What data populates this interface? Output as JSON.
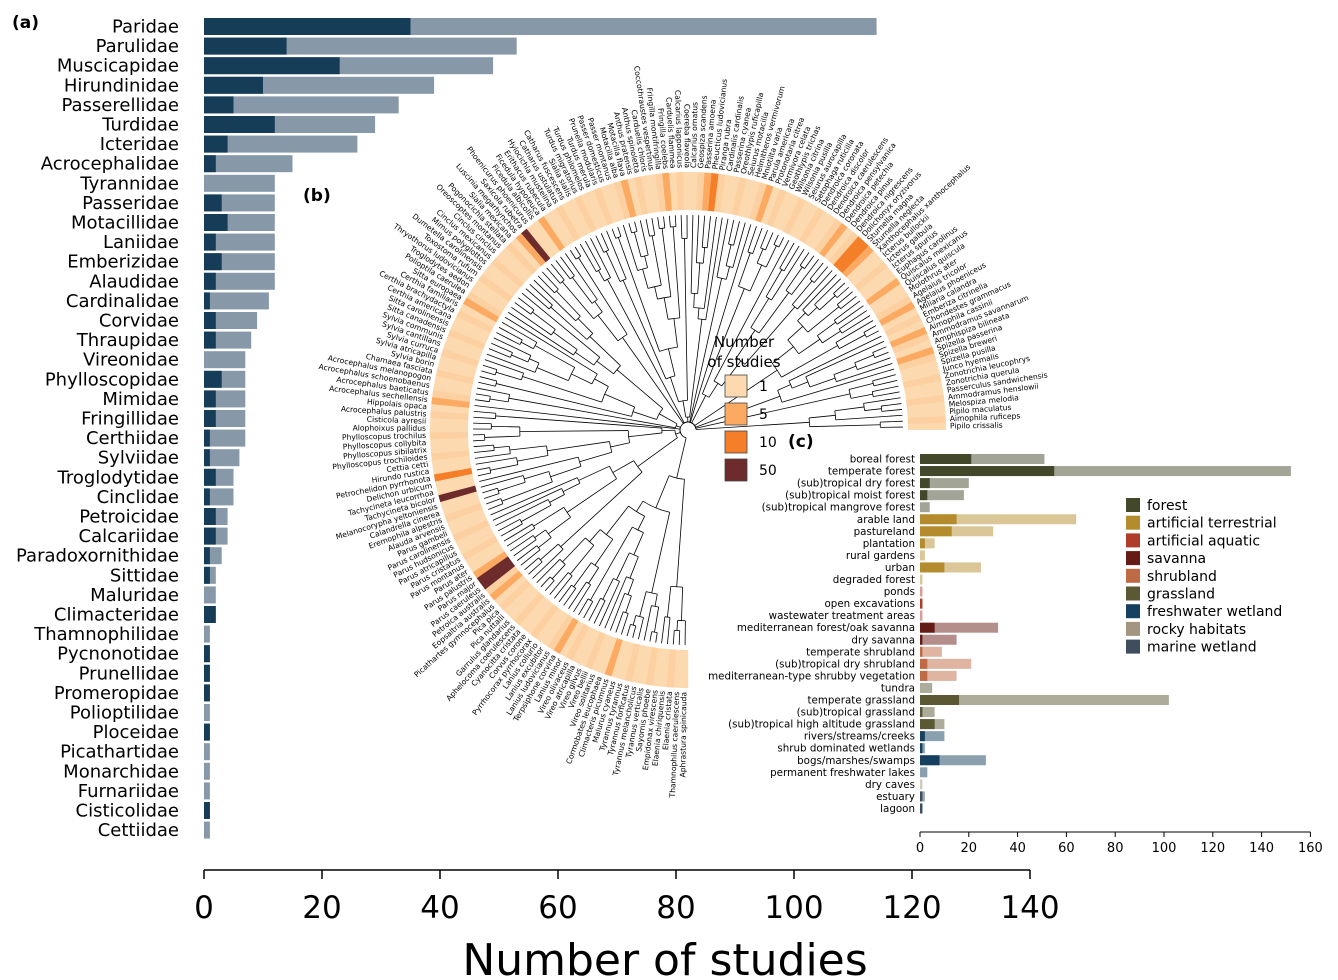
{
  "panels": {
    "a": "(a)",
    "b": "(b)",
    "c": "(c)"
  },
  "colors": {
    "family_dark": "#163d57",
    "family_light": "#8799a8",
    "studies_scale": [
      "#fdd9b0",
      "#fcaa62",
      "#f57f28",
      "#6e2b2b"
    ]
  },
  "chart_data": [
    {
      "type": "bar",
      "orientation": "horizontal",
      "stacked": true,
      "xlabel": "Number of studies",
      "xlim": [
        0,
        140
      ],
      "xticks": [
        0,
        20,
        40,
        60,
        80,
        100,
        120,
        140
      ],
      "categories": [
        "Paridae",
        "Parulidae",
        "Muscicapidae",
        "Hirundinidae",
        "Passerellidae",
        "Turdidae",
        "Icteridae",
        "Acrocephalidae",
        "Tyrannidae",
        "Passeridae",
        "Motacillidae",
        "Laniidae",
        "Emberizidae",
        "Alaudidae",
        "Cardinalidae",
        "Corvidae",
        "Thraupidae",
        "Vireonidae",
        "Phylloscopidae",
        "Mimidae",
        "Fringillidae",
        "Certhiidae",
        "Sylviidae",
        "Troglodytidae",
        "Cinclidae",
        "Petroicidae",
        "Calcariidae",
        "Paradoxornithidae",
        "Sittidae",
        "Maluridae",
        "Climacteridae",
        "Thamnophilidae",
        "Pycnonotidae",
        "Prunellidae",
        "Promeropidae",
        "Polioptilidae",
        "Ploceidae",
        "Picathartidae",
        "Monarchidae",
        "Furnariidae",
        "Cisticolidae",
        "Cettiidae"
      ],
      "series": [
        {
          "values": [
            35,
            14,
            23,
            10,
            5,
            12,
            4,
            2,
            0,
            3,
            4,
            2,
            3,
            2,
            1,
            2,
            2,
            0,
            3,
            2,
            2,
            1,
            1,
            2,
            1,
            2,
            2,
            1,
            1,
            0,
            2,
            0,
            1,
            1,
            1,
            0,
            1,
            0,
            0,
            0,
            1,
            0
          ]
        },
        {
          "values": [
            114,
            53,
            49,
            39,
            33,
            29,
            26,
            15,
            12,
            12,
            12,
            12,
            12,
            12,
            11,
            9,
            8,
            7,
            7,
            7,
            7,
            7,
            6,
            5,
            5,
            4,
            4,
            3,
            2,
            2,
            2,
            1,
            1,
            1,
            1,
            1,
            1,
            1,
            1,
            1,
            1,
            1
          ]
        }
      ]
    },
    {
      "type": "heatmap",
      "layout": "circular",
      "legend_title": "Number of studies",
      "legend": [
        "1",
        "5",
        "10",
        "50"
      ],
      "tips": [
        "Pipilo crissalis",
        "Aimophila ruficeps",
        "Pipilo maculatus",
        "Melospiza melodia",
        "Ammodramus henslowii",
        "Passerculus sandwichensis",
        "Zonotrichia querula",
        "Zonotrichia leucophrys",
        "Junco hyemalis",
        "Spizella pusilla",
        "Spizella breweri",
        "Spizella passerina",
        "Amphispiza bilineata",
        "Ammodramus savannarum",
        "Aimophila cassinii",
        "Chondestes grammacus",
        "Emberiza citrinella",
        "Miliaria calandra",
        "Agelaius phoeniceus",
        "Agelaius tricolor",
        "Molothrus ater",
        "Quiscalus quiscula",
        "Quiscalus mexicanus",
        "Euphagus carolinus",
        "Icterus spurius",
        "Icterus galbula",
        "Icterus bullockii",
        "Xanthocephalus xanthocephalus",
        "Sturnella neglecta",
        "Sturnella magna",
        "Dolichonyx oryzivorus",
        "Dendroica nigrescens",
        "Dendroica pinus",
        "Dendroica petechia",
        "Dendroica pensylvanica",
        "Dendroica caerulescens",
        "Dendroica discolor",
        "Dendroica coronata",
        "Setophaga ruticilla",
        "Seiurus aurocapilla",
        "Wilsonia pusilla",
        "Wilsonia citrina",
        "Geothlypis trichas",
        "Vermivora celata",
        "Protonotaria citrea",
        "Parula americana",
        "Mniotilta varia",
        "Helmitheros vermivorum",
        "Seiurus motacilla",
        "Oreothlypis ruficapilla",
        "Passerina cyanea",
        "Cardinalis cardinalis",
        "Piranga rubra",
        "Pheucticus ludovicianus",
        "Passerina amoena",
        "Geospiza scandens",
        "Calcarius ornatus",
        "Coereba flaveola",
        "Calcarius lapponicus",
        "Carduelis flammea",
        "Fringilla coelebs",
        "Fringilla montifringilla",
        "Coccothraustes vespertinus",
        "Carduelis chloris",
        "Anthus spinoletta",
        "Anthus pratensis",
        "Motacilla flava",
        "Motacilla alba",
        "Passer montanus",
        "Passer domesticus",
        "Prunella modularis",
        "Turdus merula",
        "Turdus philomelos",
        "Turdus migratorius",
        "Sialia sialis",
        "Catharus fuscescens",
        "Catharus ustulatus",
        "Hylocichla mustelina",
        "Erithacus rubecula",
        "Ficedula hypoleuca",
        "Ficedula albicollis",
        "Phoenicurus phoenicurus",
        "Saxicola rubetra",
        "Luscinia megarhynchos",
        "Sialia mexicana",
        "Pogonocichla stellata",
        "Oreoscoptes montanus",
        "Cinclus cinclus",
        "Cinclus mexicanus",
        "Mimus polyglottos",
        "Dumetella carolinensis",
        "Toxostoma rufum",
        "Thryothorus ludovicianus",
        "Troglodytes aedon",
        "Polioptila caerulea",
        "Sitta europaea",
        "Certhia familiaris",
        "Certhia brachydactyla",
        "Certhia americana",
        "Sitta carolinensis",
        "Sitta canadensis",
        "Sylvia communis",
        "Sylvia cantillans",
        "Sylvia curruca",
        "Sylvia atricapilla",
        "Sylvia borin",
        "Chamaea fasciata",
        "Acrocephalus melanopogon",
        "Acrocephalus schoenobaenus",
        "Acrocephalus baeticatus",
        "Acrocephalus sechellensis",
        "Hippolais opaca",
        "Acrocephalus palustris",
        "Cisticola ayresii",
        "Alophoixus pallidus",
        "Phylloscopus trochilus",
        "Phylloscopus collybita",
        "Phylloscopus sibilatrix",
        "Phylloscopus trochiloides",
        "Cettia cetti",
        "Hirundo rustica",
        "Petrochelidon pyrrhonota",
        "Delichon urbicum",
        "Tachycineta leucorrhoa",
        "Tachycineta bicolor",
        "Melanocorypha yeltoniensis",
        "Calandrella cinerea",
        "Eremophila alpestris",
        "Alauda arvensis",
        "Parus gambeli",
        "Parus carolinensis",
        "Parus hudsonicus",
        "Parus atricapillus",
        "Parus cristatus",
        "Parus montanus",
        "Parus ater",
        "Parus palustris",
        "Parus major",
        "Parus caeruleus",
        "Petroica australis",
        "Eopsaltria australis",
        "Picathartes gymnocephalus",
        "Pica pica",
        "Pica nuttalli",
        "Garrulus glandarius",
        "Aphelocoma coerulescens",
        "Cyanocitta cristata",
        "Corvus corone",
        "Pyrrhocorax pyrrhocorax",
        "Lanius collurio",
        "Lanius excubitor",
        "Lanius ludovicianus",
        "Terpsiphone corvina",
        "Lanius minor",
        "Vireo olivaceus",
        "Vireo atricapilla",
        "Vireo gilvus",
        "Vireo bellii",
        "Vireo solitarius",
        "Cormobates leucophaea",
        "Climacteris picumnus",
        "Malurus cyaneus",
        "Tyrannus tyrannus",
        "Tyrannus forficatus",
        "Tyrannus melancholicus",
        "Tyrannus verticalis",
        "Sayornis phoebe",
        "Empidonax virescens",
        "Elaenia chiriquensis",
        "Elaenia cristata",
        "Thamnophilus caerulescens",
        "Aphrastura spinicauda"
      ]
    },
    {
      "type": "bar",
      "orientation": "horizontal",
      "stacked": true,
      "xlim": [
        0,
        160
      ],
      "xticks": [
        0,
        20,
        40,
        60,
        80,
        100,
        120,
        140,
        160
      ],
      "legend": [
        "forest",
        "artificial terrestrial",
        "artificial aquatic",
        "savanna",
        "shrubland",
        "grassland",
        "freshwater wetland",
        "rocky habitats",
        "marine wetland"
      ],
      "legend_colors": [
        "#44482a",
        "#b48c2e",
        "#b03c2a",
        "#661c16",
        "#be6a45",
        "#5b5834",
        "#15405f",
        "#a39580",
        "#3e4e5e"
      ],
      "categories": [
        "boreal forest",
        "temperate forest",
        "(sub)tropical dry forest",
        "(sub)tropical moist forest",
        "(sub)tropical mangrove forest",
        "arable land",
        "pastureland",
        "plantation",
        "rural gardens",
        "urban",
        "degraded forest",
        "ponds",
        "open excavations",
        "wastewater treatment areas",
        "mediterranean forest/oak savanna",
        "dry savanna",
        "temperate shrubland",
        "(sub)tropical dry shrubland",
        "mediterranean-type shrubby vegetation",
        "tundra",
        "temperate grassland",
        "(sub)tropical grassland",
        "(sub)tropical high altitude grassland",
        "rivers/streams/creeks",
        "shrub dominated wetlands",
        "bogs/marshes/swamps",
        "permanent freshwater lakes",
        "dry caves",
        "estuary",
        "lagoon"
      ],
      "group": [
        0,
        0,
        0,
        0,
        0,
        1,
        1,
        1,
        1,
        1,
        1,
        2,
        2,
        2,
        3,
        3,
        4,
        4,
        4,
        5,
        5,
        5,
        5,
        6,
        6,
        6,
        6,
        7,
        8,
        8
      ],
      "dark": [
        21,
        55,
        4,
        3,
        0,
        15,
        13,
        2,
        0,
        10,
        0,
        0,
        1,
        0,
        6,
        1,
        1,
        3,
        3,
        0,
        16,
        1,
        6,
        2,
        1,
        8,
        0,
        0,
        1,
        1
      ],
      "total": [
        51,
        152,
        20,
        18,
        4,
        64,
        30,
        6,
        2,
        25,
        1,
        1,
        1,
        1,
        32,
        15,
        9,
        21,
        15,
        5,
        102,
        6,
        10,
        10,
        2,
        27,
        3,
        1,
        2,
        1
      ]
    }
  ]
}
